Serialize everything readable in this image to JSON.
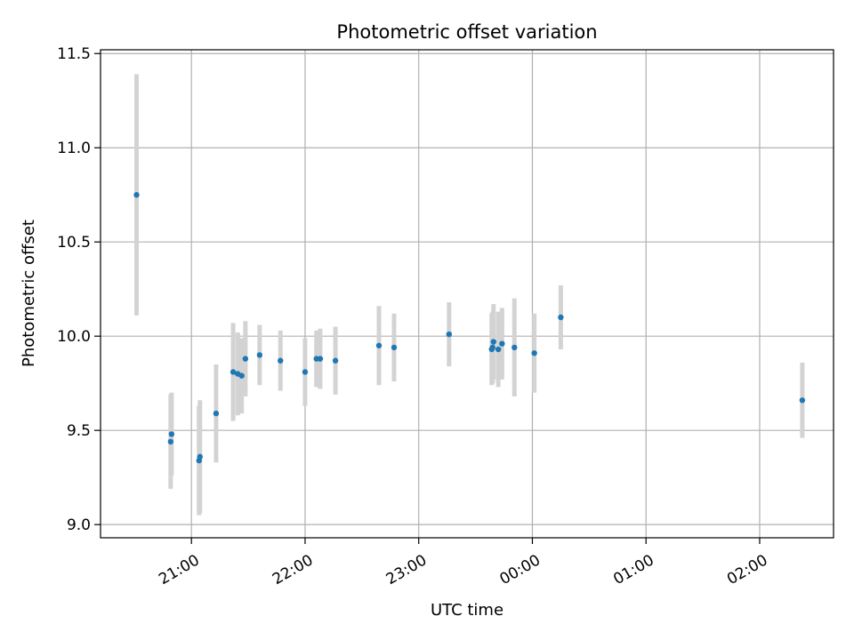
{
  "chart_data": {
    "type": "scatter",
    "title": "Photometric offset variation",
    "xlabel": "UTC time",
    "ylabel": "Photometric offset",
    "x_unit": "hours since 00:00 UTC (continuing past midnight)",
    "xlim": [
      20.2,
      26.65
    ],
    "ylim": [
      8.93,
      11.52
    ],
    "grid": true,
    "x_ticks": [
      {
        "value": 21,
        "label": "21:00"
      },
      {
        "value": 22,
        "label": "22:00"
      },
      {
        "value": 23,
        "label": "23:00"
      },
      {
        "value": 24,
        "label": "00:00"
      },
      {
        "value": 25,
        "label": "01:00"
      },
      {
        "value": 26,
        "label": "02:00"
      }
    ],
    "y_ticks": [
      {
        "value": 9.0,
        "label": "9.0"
      },
      {
        "value": 9.5,
        "label": "9.5"
      },
      {
        "value": 10.0,
        "label": "10.0"
      },
      {
        "value": 10.5,
        "label": "10.5"
      },
      {
        "value": 11.0,
        "label": "11.0"
      },
      {
        "value": 11.5,
        "label": "11.5"
      }
    ],
    "series": [
      {
        "name": "offset",
        "marker_color": "#1f77b4",
        "errorbar_color": "#d3d3d3",
        "points": [
          {
            "x": 20.517,
            "y": 10.75,
            "err": 0.64
          },
          {
            "x": 20.817,
            "y": 9.44,
            "err": 0.25
          },
          {
            "x": 20.825,
            "y": 9.48,
            "err": 0.22
          },
          {
            "x": 21.067,
            "y": 9.34,
            "err": 0.29
          },
          {
            "x": 21.075,
            "y": 9.36,
            "err": 0.3
          },
          {
            "x": 21.217,
            "y": 9.59,
            "err": 0.26
          },
          {
            "x": 21.367,
            "y": 9.81,
            "err": 0.26
          },
          {
            "x": 21.408,
            "y": 9.8,
            "err": 0.22
          },
          {
            "x": 21.442,
            "y": 9.79,
            "err": 0.2
          },
          {
            "x": 21.475,
            "y": 9.88,
            "err": 0.2
          },
          {
            "x": 21.6,
            "y": 9.9,
            "err": 0.16
          },
          {
            "x": 21.783,
            "y": 9.87,
            "err": 0.16
          },
          {
            "x": 22.0,
            "y": 9.81,
            "err": 0.18
          },
          {
            "x": 22.1,
            "y": 9.88,
            "err": 0.15
          },
          {
            "x": 22.133,
            "y": 9.88,
            "err": 0.16
          },
          {
            "x": 22.267,
            "y": 9.87,
            "err": 0.18
          },
          {
            "x": 22.65,
            "y": 9.95,
            "err": 0.21
          },
          {
            "x": 22.783,
            "y": 9.94,
            "err": 0.18
          },
          {
            "x": 23.267,
            "y": 10.01,
            "err": 0.17
          },
          {
            "x": 23.642,
            "y": 9.93,
            "err": 0.19
          },
          {
            "x": 23.65,
            "y": 9.94,
            "err": 0.19
          },
          {
            "x": 23.658,
            "y": 9.97,
            "err": 0.2
          },
          {
            "x": 23.7,
            "y": 9.93,
            "err": 0.2
          },
          {
            "x": 23.733,
            "y": 9.96,
            "err": 0.19
          },
          {
            "x": 23.842,
            "y": 9.94,
            "err": 0.26
          },
          {
            "x": 24.017,
            "y": 9.91,
            "err": 0.21
          },
          {
            "x": 24.25,
            "y": 10.1,
            "err": 0.17
          },
          {
            "x": 26.375,
            "y": 9.66,
            "err": 0.2
          }
        ]
      }
    ]
  }
}
